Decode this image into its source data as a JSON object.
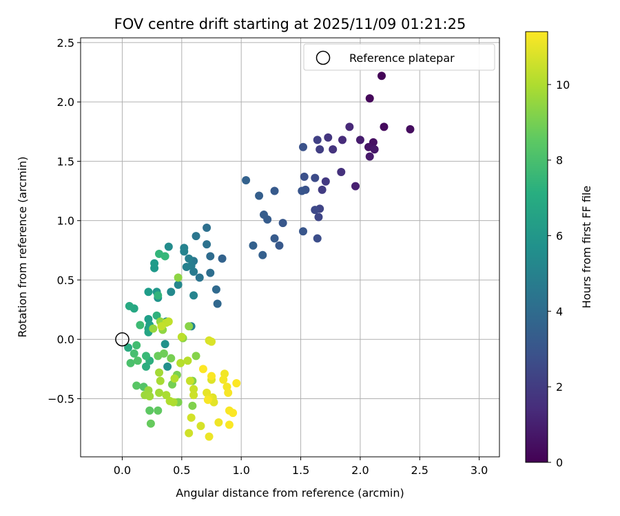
{
  "chart_data": {
    "type": "scatter",
    "title": "FOV centre drift starting at 2025/11/09 01:21:25",
    "xlabel": "Angular distance from reference (arcmin)",
    "ylabel": "Rotation from reference (arcmin)",
    "xlim": [
      -0.35,
      3.17
    ],
    "ylim": [
      -0.99,
      2.54
    ],
    "xticks": [
      0.0,
      0.5,
      1.0,
      1.5,
      2.0,
      2.5,
      3.0
    ],
    "xtick_labels": [
      "0.0",
      "0.5",
      "1.0",
      "1.5",
      "2.0",
      "2.5",
      "3.0"
    ],
    "yticks": [
      -0.5,
      0.0,
      0.5,
      1.0,
      1.5,
      2.0,
      2.5
    ],
    "ytick_labels": [
      "−0.5",
      "0.0",
      "0.5",
      "1.0",
      "1.5",
      "2.0",
      "2.5"
    ],
    "grid": true,
    "legend": {
      "position": "top-right",
      "entries": [
        "Reference platepar"
      ]
    },
    "reference_point": {
      "x": 0.0,
      "y": 0.0,
      "label": "Reference platepar"
    },
    "colorbar": {
      "label": "Hours from first FF file",
      "range": [
        0,
        11.4
      ],
      "ticks": [
        0,
        2,
        4,
        6,
        8,
        10
      ],
      "tick_labels": [
        "0",
        "2",
        "4",
        "6",
        "8",
        "10"
      ],
      "colormap": "viridis"
    },
    "points": [
      [
        2.18,
        2.22,
        0.1
      ],
      [
        2.08,
        2.03,
        0.2
      ],
      [
        2.2,
        1.79,
        0.3
      ],
      [
        2.42,
        1.77,
        0.4
      ],
      [
        2.11,
        1.66,
        0.5
      ],
      [
        2.07,
        1.62,
        0.6
      ],
      [
        2.12,
        1.6,
        0.7
      ],
      [
        2.08,
        1.54,
        0.8
      ],
      [
        2.0,
        1.68,
        0.9
      ],
      [
        1.96,
        1.29,
        1.0
      ],
      [
        1.91,
        1.79,
        1.3
      ],
      [
        1.85,
        1.68,
        1.4
      ],
      [
        1.84,
        1.41,
        1.6
      ],
      [
        1.77,
        1.6,
        1.7
      ],
      [
        1.73,
        1.7,
        1.8
      ],
      [
        1.71,
        1.33,
        1.9
      ],
      [
        1.68,
        1.26,
        2.0
      ],
      [
        1.66,
        1.6,
        2.1
      ],
      [
        1.64,
        1.68,
        2.2
      ],
      [
        1.66,
        1.1,
        2.3
      ],
      [
        1.65,
        1.03,
        2.4
      ],
      [
        1.62,
        1.09,
        2.5
      ],
      [
        1.62,
        1.36,
        2.6
      ],
      [
        1.64,
        0.85,
        2.7
      ],
      [
        1.53,
        1.37,
        2.8
      ],
      [
        1.52,
        1.62,
        2.85
      ],
      [
        1.54,
        1.26,
        2.9
      ],
      [
        1.51,
        1.25,
        3.0
      ],
      [
        1.52,
        0.91,
        3.05
      ],
      [
        1.35,
        0.98,
        3.1
      ],
      [
        1.32,
        0.79,
        3.15
      ],
      [
        1.28,
        1.25,
        3.2
      ],
      [
        1.28,
        0.85,
        3.25
      ],
      [
        1.22,
        1.01,
        3.3
      ],
      [
        1.19,
        1.05,
        3.35
      ],
      [
        1.15,
        1.21,
        3.4
      ],
      [
        1.18,
        0.71,
        3.45
      ],
      [
        1.1,
        0.79,
        3.5
      ],
      [
        1.04,
        1.34,
        3.55
      ],
      [
        0.84,
        0.68,
        3.6
      ],
      [
        0.8,
        0.3,
        3.8
      ],
      [
        0.79,
        0.42,
        3.9
      ],
      [
        0.74,
        0.7,
        4.0
      ],
      [
        0.74,
        0.56,
        4.1
      ],
      [
        0.71,
        0.94,
        4.2
      ],
      [
        0.71,
        0.8,
        4.3
      ],
      [
        0.65,
        0.52,
        4.4
      ],
      [
        0.62,
        0.87,
        4.5
      ],
      [
        0.6,
        0.66,
        4.6
      ],
      [
        0.6,
        0.57,
        4.7
      ],
      [
        0.58,
        0.62,
        4.8
      ],
      [
        0.56,
        0.68,
        4.9
      ],
      [
        0.54,
        0.61,
        5.0
      ],
      [
        0.52,
        0.77,
        5.05
      ],
      [
        0.52,
        0.74,
        5.1
      ],
      [
        0.6,
        0.37,
        5.15
      ],
      [
        0.58,
        0.11,
        5.2
      ],
      [
        0.47,
        0.46,
        5.3
      ],
      [
        0.41,
        0.4,
        5.4
      ],
      [
        0.39,
        0.78,
        5.5
      ],
      [
        0.37,
        0.15,
        5.6
      ],
      [
        0.38,
        -0.23,
        5.7
      ],
      [
        0.36,
        -0.04,
        5.8
      ],
      [
        0.3,
        0.35,
        5.9
      ],
      [
        0.29,
        0.4,
        6.0
      ],
      [
        0.27,
        0.6,
        6.1
      ],
      [
        0.27,
        0.64,
        6.2
      ],
      [
        0.22,
        0.4,
        6.3
      ],
      [
        0.22,
        0.17,
        6.4
      ],
      [
        0.23,
        0.12,
        6.5
      ],
      [
        0.22,
        0.09,
        6.6
      ],
      [
        0.22,
        0.06,
        6.7
      ],
      [
        0.1,
        0.26,
        6.8
      ],
      [
        0.06,
        0.28,
        6.9
      ],
      [
        0.05,
        -0.07,
        7.0
      ],
      [
        0.2,
        -0.23,
        7.1
      ],
      [
        0.23,
        -0.18,
        7.2
      ],
      [
        0.29,
        0.2,
        7.3
      ],
      [
        0.3,
        0.37,
        7.4
      ],
      [
        0.31,
        0.72,
        7.5
      ],
      [
        0.36,
        0.7,
        7.6
      ],
      [
        0.2,
        -0.14,
        7.7
      ],
      [
        0.15,
        0.12,
        7.8
      ],
      [
        0.12,
        -0.05,
        7.9
      ],
      [
        0.1,
        -0.12,
        8.0
      ],
      [
        0.07,
        -0.2,
        8.1
      ],
      [
        0.13,
        -0.18,
        8.2
      ],
      [
        0.18,
        -0.4,
        8.3
      ],
      [
        0.12,
        -0.39,
        8.4
      ],
      [
        0.23,
        -0.6,
        8.5
      ],
      [
        0.3,
        -0.6,
        8.6
      ],
      [
        0.24,
        -0.71,
        8.7
      ],
      [
        0.3,
        -0.14,
        8.8
      ],
      [
        0.35,
        -0.12,
        8.9
      ],
      [
        0.42,
        -0.38,
        9.0
      ],
      [
        0.41,
        -0.16,
        9.05
      ],
      [
        0.46,
        -0.3,
        9.1
      ],
      [
        0.47,
        -0.53,
        9.15
      ],
      [
        0.59,
        -0.56,
        9.2
      ],
      [
        0.59,
        -0.35,
        9.25
      ],
      [
        0.62,
        -0.14,
        9.3
      ],
      [
        0.56,
        0.11,
        9.35
      ],
      [
        0.51,
        0.01,
        9.4
      ],
      [
        0.47,
        0.52,
        9.45
      ],
      [
        0.34,
        0.08,
        9.5
      ],
      [
        0.32,
        0.15,
        9.55
      ],
      [
        0.26,
        0.09,
        9.6
      ],
      [
        0.22,
        -0.43,
        9.65
      ],
      [
        0.19,
        -0.47,
        9.7
      ],
      [
        0.23,
        -0.48,
        9.75
      ],
      [
        0.31,
        -0.45,
        9.8
      ],
      [
        0.31,
        -0.28,
        9.85
      ],
      [
        0.32,
        -0.35,
        9.9
      ],
      [
        0.37,
        -0.47,
        9.95
      ],
      [
        0.43,
        -0.53,
        10.0
      ],
      [
        0.4,
        -0.52,
        10.05
      ],
      [
        0.44,
        -0.33,
        10.1
      ],
      [
        0.49,
        -0.2,
        10.15
      ],
      [
        0.55,
        -0.18,
        10.2
      ],
      [
        0.5,
        0.02,
        10.25
      ],
      [
        0.37,
        0.14,
        10.3
      ],
      [
        0.39,
        0.15,
        10.35
      ],
      [
        0.33,
        0.11,
        10.4
      ],
      [
        0.57,
        -0.35,
        10.45
      ],
      [
        0.6,
        -0.42,
        10.5
      ],
      [
        0.6,
        -0.47,
        10.55
      ],
      [
        0.56,
        -0.79,
        10.6
      ],
      [
        0.58,
        -0.66,
        10.65
      ],
      [
        0.66,
        -0.73,
        10.7
      ],
      [
        0.73,
        -0.01,
        10.75
      ],
      [
        0.75,
        -0.02,
        10.8
      ],
      [
        0.75,
        -0.34,
        10.85
      ],
      [
        0.76,
        -0.49,
        10.9
      ],
      [
        0.77,
        -0.53,
        10.95
      ],
      [
        0.71,
        -0.45,
        11.0
      ],
      [
        0.73,
        -0.49,
        11.05
      ],
      [
        0.73,
        -0.82,
        11.1
      ],
      [
        0.81,
        -0.7,
        11.15
      ],
      [
        0.86,
        -0.29,
        11.2
      ],
      [
        0.88,
        -0.4,
        11.25
      ],
      [
        0.89,
        -0.45,
        11.3
      ],
      [
        0.9,
        -0.6,
        11.32
      ],
      [
        0.9,
        -0.72,
        11.34
      ],
      [
        0.93,
        -0.62,
        11.36
      ],
      [
        0.96,
        -0.37,
        11.38
      ],
      [
        0.68,
        -0.25,
        11.4
      ],
      [
        0.75,
        -0.31,
        11.35
      ],
      [
        0.72,
        -0.51,
        11.3
      ],
      [
        0.85,
        -0.34,
        11.25
      ]
    ]
  }
}
